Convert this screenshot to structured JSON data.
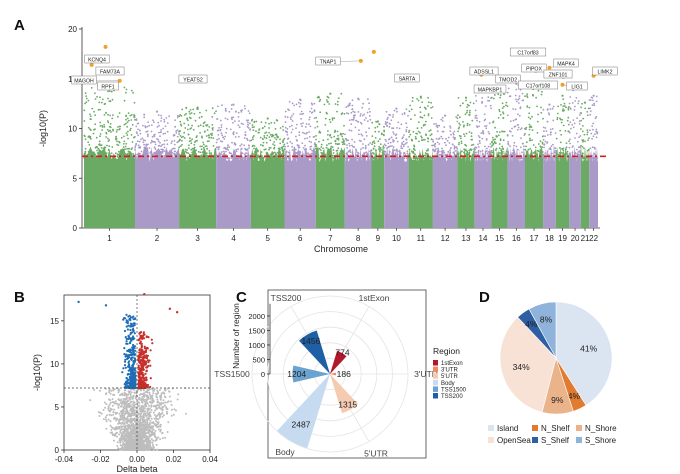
{
  "chart_data": [
    {
      "panel": "A",
      "type": "scatter",
      "subtype": "manhattan",
      "xlabel": "Chromosome",
      "ylabel": "-log10(P)",
      "ylim": [
        0,
        20
      ],
      "yticks": [
        0,
        5,
        10,
        15,
        20
      ],
      "threshold": 7.2,
      "colors": {
        "odd": "#6aaa64",
        "even": "#a99ac8",
        "threshold": "#e0191e",
        "highlight": "#f2a02b"
      },
      "chromosomes": [
        "1",
        "2",
        "3",
        "4",
        "5",
        "6",
        "7",
        "8",
        "9",
        "10",
        "11",
        "12",
        "13",
        "14",
        "15",
        "16",
        "17",
        "18",
        "19",
        "20",
        "21",
        "22"
      ],
      "chrom_peak": [
        14.2,
        11.7,
        12.1,
        12.4,
        11.0,
        12.9,
        13.5,
        13.0,
        10.7,
        12.0,
        13.2,
        11.3,
        13.1,
        13.7,
        14.0,
        14.5,
        14.4,
        12.4,
        13.3,
        14.0,
        12.6,
        13.3
      ],
      "genes": [
        {
          "label": "KCNQ4",
          "chrom": "1",
          "y": 16.4
        },
        {
          "label": "FAM73A",
          "chrom": "1",
          "y": 15.6
        },
        {
          "label": "MAGOH",
          "chrom": "1",
          "y": 14.8
        },
        {
          "label": "RPF1",
          "chrom": "1",
          "y": 14.3
        },
        {
          "label": "YEATS2",
          "chrom": "3",
          "y": 15.0
        },
        {
          "label": "TNAP1",
          "chrom": "8",
          "y": 16.8
        },
        {
          "label": "SARTA",
          "chrom": "10",
          "y": 15.0
        },
        {
          "label": "ADSSL1",
          "chrom": "14",
          "y": 15.4
        },
        {
          "label": "TMOD2",
          "chrom": "15",
          "y": 15.0
        },
        {
          "label": "MAPKBP1",
          "chrom": "15",
          "y": 14.0
        },
        {
          "label": "C17orf83",
          "chrom": "17",
          "y": 17.6
        },
        {
          "label": "PIPOX",
          "chrom": "17",
          "y": 15.8
        },
        {
          "label": "C17orf108",
          "chrom": "17",
          "y": 14.4
        },
        {
          "label": "ZNF101",
          "chrom": "19",
          "y": 15.2
        },
        {
          "label": "MAPK4",
          "chrom": "18",
          "y": 16.1
        },
        {
          "label": "LIG1",
          "chrom": "19",
          "y": 14.4
        },
        {
          "label": "LIMK2",
          "chrom": "22",
          "y": 15.3
        }
      ],
      "extra_points": [
        {
          "chrom": "9",
          "y": 17.7
        },
        {
          "chrom": "1",
          "y": 18.2
        }
      ]
    },
    {
      "panel": "B",
      "type": "scatter",
      "subtype": "volcano",
      "xlabel": "Delta beta",
      "ylabel": "-log10(P)",
      "xlim": [
        -0.04,
        0.04
      ],
      "xticks": [
        -0.04,
        -0.02,
        0.0,
        0.02,
        0.04
      ],
      "xtick_labels": [
        "-0.04",
        "-0.02",
        "0.00",
        "0.02",
        "0.04"
      ],
      "ylim": [
        0,
        18
      ],
      "yticks": [
        0,
        5,
        10,
        15
      ],
      "threshold": 7.2,
      "colors": {
        "hypo": "#1f6db5",
        "hyper": "#c62f2a",
        "ns": "#bdbdbd"
      }
    },
    {
      "panel": "C",
      "type": "bar",
      "subtype": "polar",
      "ylabel": "Number of region",
      "rticks": [
        0,
        500,
        1000,
        1500,
        2000
      ],
      "legend_title": "Region",
      "categories": [
        "1stExon",
        "3'UTR",
        "5'UTR",
        "Body",
        "TSS1500",
        "TSS200"
      ],
      "values": [
        774,
        186,
        1315,
        2487,
        1204,
        1456
      ],
      "colors": [
        "#b2182b",
        "#ef8a62",
        "#f4cbb0",
        "#c6dbef",
        "#6ba3d0",
        "#1f5fa6"
      ]
    },
    {
      "panel": "D",
      "type": "pie",
      "categories": [
        "Island",
        "N_Shelf",
        "N_Shore",
        "OpenSea",
        "S_Shelf",
        "S_Shore"
      ],
      "values": [
        41,
        4,
        9,
        34,
        4,
        8
      ],
      "labels": [
        "41%",
        "4%",
        "9%",
        "34%",
        "4%",
        "8%"
      ],
      "colors": [
        "#dbe4f1",
        "#e07b30",
        "#eab38a",
        "#f7e2d5",
        "#2e5fa3",
        "#8fb3da"
      ]
    }
  ]
}
